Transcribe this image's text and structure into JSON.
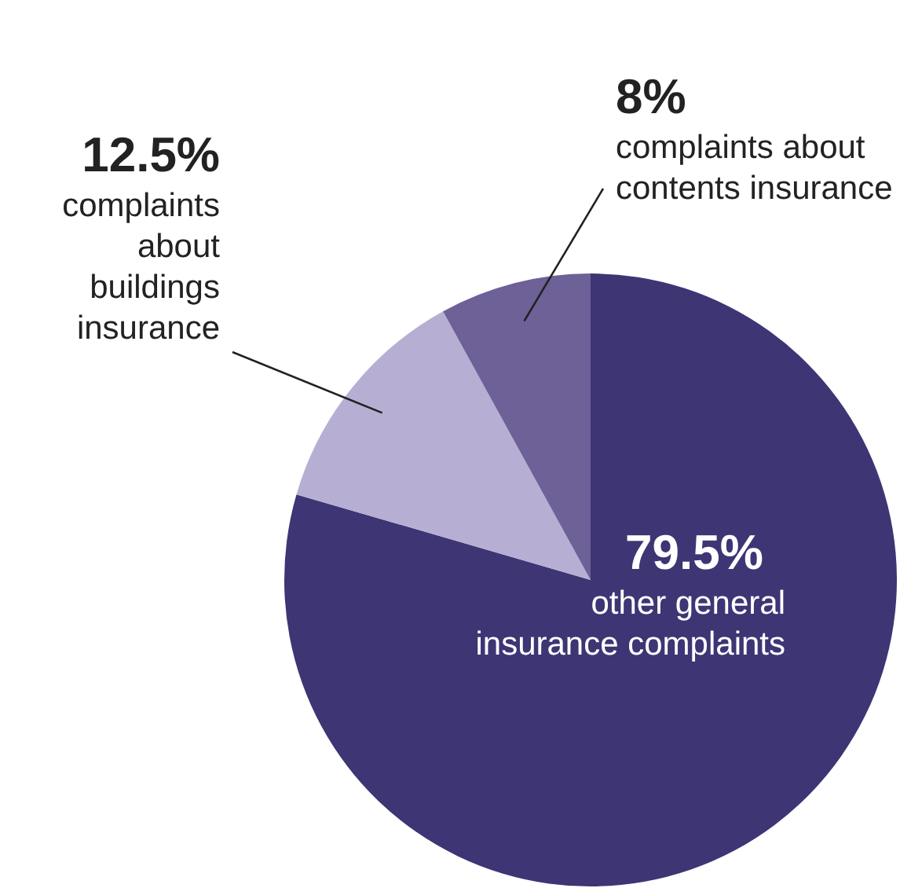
{
  "chart_data": {
    "type": "pie",
    "categories": [
      "other general insurance complaints",
      "complaints about buildings insurance",
      "complaints about contents insurance"
    ],
    "values": [
      79.5,
      12.5,
      8
    ],
    "colors": [
      "#3d3574",
      "#b6afd3",
      "#6d6198"
    ],
    "value_labels": [
      "79.5%",
      "12.5%",
      "8%"
    ],
    "legend": false
  }
}
